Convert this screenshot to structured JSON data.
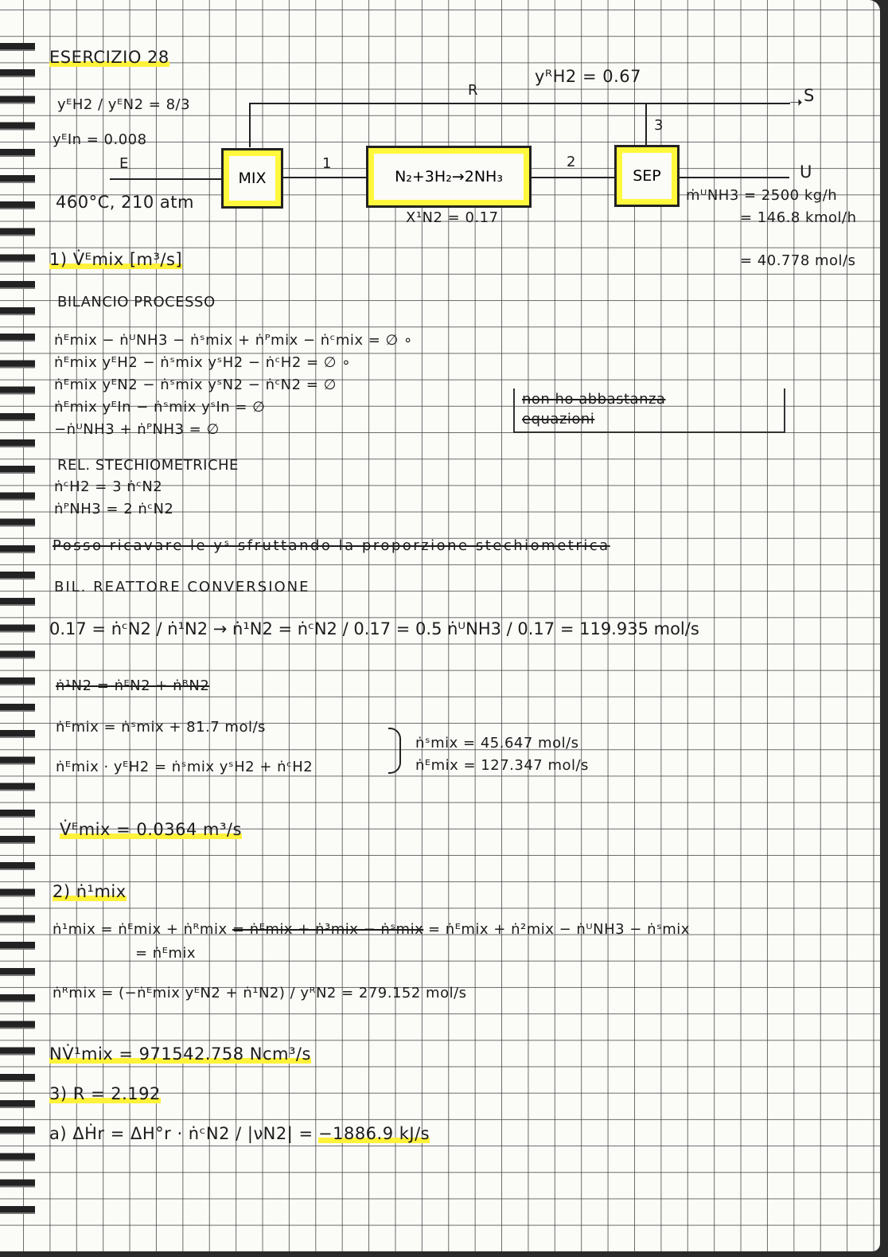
{
  "title": "ESERCIZIO 28",
  "diagram": {
    "ratio": "yᴱH2 / yᴱN2 = 8/3",
    "y_in": "yᴱIn = 0.008",
    "y_r_h2": "yᴿH2 = 0.67",
    "stream_R": "R",
    "stream_S": "S",
    "stream_3": "3",
    "stream_E": "E",
    "stream_1": "1",
    "stream_2": "2",
    "stream_U": "U",
    "feed_conditions": "460°C, 210 atm",
    "mix_label": "MIX",
    "reactor_label": "N₂+3H₂→2NH₃",
    "sep_label": "SEP",
    "conversion": "X¹N2 = 0.17",
    "product_mass": "ṁᵁNH3 = 2500 kg/h",
    "product_kmol": "= 146.8 kmol/h",
    "product_mol": "= 40.778 mol/s"
  },
  "section1": {
    "heading": "1) V̇ᴱmix [m³/s]",
    "bilancio": "BILANCIO PROCESSO",
    "eqs": [
      "ṅᴱmix − ṅᵁNH3 − ṅˢmix + ṅᴾmix − ṅᶜmix = ∅  ∘",
      "ṅᴱmix yᴱH2 − ṅˢmix yˢH2 − ṅᶜH2 = ∅  ∘",
      "ṅᴱmix yᴱN2 − ṅˢmix yˢN2 − ṅᶜN2 = ∅",
      "ṅᴱmix yᴱIn − ṅˢmix yˢIn = ∅",
      "−ṅᵁNH3 + ṅᴾNH3 = ∅"
    ],
    "note_line1": "non ho abbastanza",
    "note_line2": "equazioni",
    "rel": "REL. STECHIOMETRICHE",
    "rel_eqs": [
      "ṅᶜH2 = 3 ṅᶜN2",
      "ṅᴾNH3 = 2 ṅᶜN2"
    ],
    "struck_line": "Posso ricavare le yˢ sfruttando la proporzione stechiometrica",
    "bil_reattore": "BIL. REATTORE CONVERSIONE",
    "conv_eq": "0.17 = ṅᶜN2 / ṅ¹N2   →   ṅ¹N2 = ṅᶜN2 / 0.17 = 0.5 ṅᵁNH3 / 0.17 = 119.935 mol/s",
    "struck_eq": "ṅ¹N2 = ṅᴱN2 + ṅᴿN2",
    "sys_eq1": "ṅᴱmix = ṅˢmix + 81.7 mol/s",
    "sys_eq2": "ṅᴱmix · yᴱH2 = ṅˢmix yˢH2 + ṅᶜH2",
    "sol1": "ṅˢmix = 45.647 mol/s",
    "sol2": "ṅᴱmix = 127.347 mol/s",
    "result": "V̇ᴱmix = 0.0364 m³/s"
  },
  "section2": {
    "heading": "2) ṅ¹mix",
    "eq_start": "ṅ¹mix = ṅᴱmix + ṅᴿmix ",
    "eq_struck": "= ṅᴱmix + ṅ³mix − ṅˢmix",
    "eq_end": " = ṅᴱmix + ṅ²mix − ṅᵁNH3 − ṅˢmix",
    "eq_sub": "= ṅᴱmix",
    "r_eq": "ṅᴿmix = (−ṅᴱmix yᴱN2 + ṅ¹N2) / yᴿN2 = 279.152 mol/s",
    "result": "NV̇¹mix = 971542.758 Ncm³/s"
  },
  "section3": {
    "heading": "3) R = 2.192",
    "a_label": "a) ΔḢr = ΔH°r · ṅᶜN2 / |νN2| = ",
    "a_result": "−1886.9 kJ/s"
  },
  "colors": {
    "highlight": "#fff23a",
    "ink": "#1c1c1c"
  }
}
